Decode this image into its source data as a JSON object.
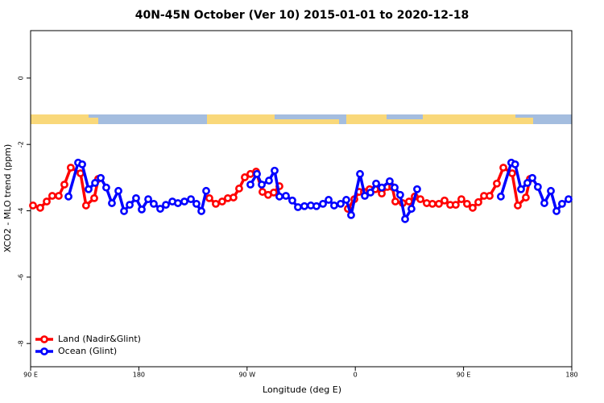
{
  "chart_data": {
    "type": "line",
    "title": "40N-45N October (Ver 10)   2015-01-01 to 2020-12-18",
    "x_label": "Longitude (deg E)",
    "y_label": "XCO2 - MLO trend (ppm)",
    "xlim": [
      90,
      540
    ],
    "xticks": [
      {
        "value": 90,
        "label": "90 E"
      },
      180,
      {
        "value": 270,
        "label": "90 W"
      },
      {
        "value": 360,
        "label": "0"
      },
      {
        "value": 450,
        "label": "90 E"
      },
      {
        "value": 540,
        "label": "180"
      }
    ],
    "ylim": [
      -8.7,
      1.43
    ],
    "yticks": [
      0,
      -2,
      -4,
      -6,
      -8
    ],
    "legend": "bottom-left",
    "series": [
      {
        "name": "Land (Nadir&Glint)",
        "color": "#ff0000",
        "x": [
          92.0,
          98.0,
          103.4,
          108.0,
          113.4,
          118.1,
          123.4,
          131.5,
          136.1,
          142.9,
          146.2,
          null,
          238.6,
          244.0,
          249.3,
          254.0,
          258.7,
          263.4,
          268.1,
          272.8,
          277.5,
          282.8,
          287.5,
          292.2,
          296.9,
          null,
          353.8,
          359.2,
          363.2,
          367.2,
          371.9,
          376.6,
          382.0,
          386.6,
          390.7,
          393.3,
          399.4,
          404.7,
          409.4,
          414.1,
          419.4,
          424.1,
          429.5,
          434.2,
          438.9,
          443.5,
          448.2,
          452.9,
          457.6,
          462.3,
          467.0,
          471.7,
          477.7,
          483.1,
          490.4,
          495.1,
          501.8,
          505.2
        ],
        "values": [
          -3.84,
          -3.91,
          -3.72,
          -3.55,
          -3.55,
          -3.21,
          -2.7,
          -2.87,
          -3.84,
          -3.62,
          -3.04,
          null,
          -3.62,
          -3.79,
          -3.72,
          -3.62,
          -3.6,
          -3.33,
          -2.99,
          -2.89,
          -2.82,
          -3.43,
          -3.52,
          -3.45,
          -3.26,
          null,
          -3.94,
          -3.65,
          -3.43,
          -3.43,
          -3.35,
          -3.35,
          -3.48,
          -3.28,
          -3.28,
          -3.72,
          -3.77,
          -3.72,
          -3.57,
          -3.65,
          -3.77,
          -3.79,
          -3.79,
          -3.69,
          -3.82,
          -3.82,
          -3.65,
          -3.79,
          -3.91,
          -3.74,
          -3.55,
          -3.55,
          -3.18,
          -2.7,
          -2.87,
          -3.84,
          -3.6,
          -3.04
        ]
      },
      {
        "name": "Ocean (Glint)",
        "color": "#0000ff",
        "x": [
          121.5,
          129.5,
          132.9,
          138.2,
          143.6,
          148.3,
          152.9,
          157.6,
          163.0,
          167.7,
          172.4,
          177.7,
          182.4,
          187.8,
          192.4,
          197.8,
          202.5,
          207.9,
          212.5,
          217.9,
          223.3,
          227.9,
          232.0,
          236.0,
          null,
          272.8,
          278.2,
          282.2,
          288.2,
          292.9,
          296.9,
          302.3,
          307.6,
          312.3,
          317.7,
          323.0,
          327.7,
          333.1,
          337.8,
          342.4,
          347.8,
          352.5,
          356.5,
          363.9,
          367.9,
          372.6,
          377.3,
          382.0,
          388.6,
          392.7,
          397.3,
          401.4,
          406.7,
          411.4,
          null,
          481.0,
          489.7,
          492.9,
          497.8,
          503.1,
          507.2,
          511.8,
          517.2,
          522.6,
          527.3,
          531.9,
          537.3
        ],
        "values": [
          -3.57,
          -2.55,
          -2.6,
          -3.35,
          -3.16,
          -3.01,
          -3.3,
          -3.77,
          -3.4,
          -4.01,
          -3.82,
          -3.62,
          -3.96,
          -3.65,
          -3.79,
          -3.94,
          -3.82,
          -3.72,
          -3.77,
          -3.72,
          -3.65,
          -3.79,
          -4.01,
          -3.4,
          null,
          -3.21,
          -2.89,
          -3.21,
          -3.09,
          -2.79,
          -3.57,
          -3.55,
          -3.69,
          -3.89,
          -3.86,
          -3.84,
          -3.86,
          -3.79,
          -3.67,
          -3.84,
          -3.79,
          -3.67,
          -4.13,
          -2.89,
          -3.55,
          -3.45,
          -3.18,
          -3.3,
          -3.11,
          -3.3,
          -3.52,
          -4.25,
          -3.94,
          -3.35,
          null,
          -3.57,
          -2.55,
          -2.6,
          -3.35,
          -3.16,
          -3.01,
          -3.28,
          -3.77,
          -3.4,
          -4.01,
          -3.79,
          -3.65
        ]
      }
    ]
  }
}
